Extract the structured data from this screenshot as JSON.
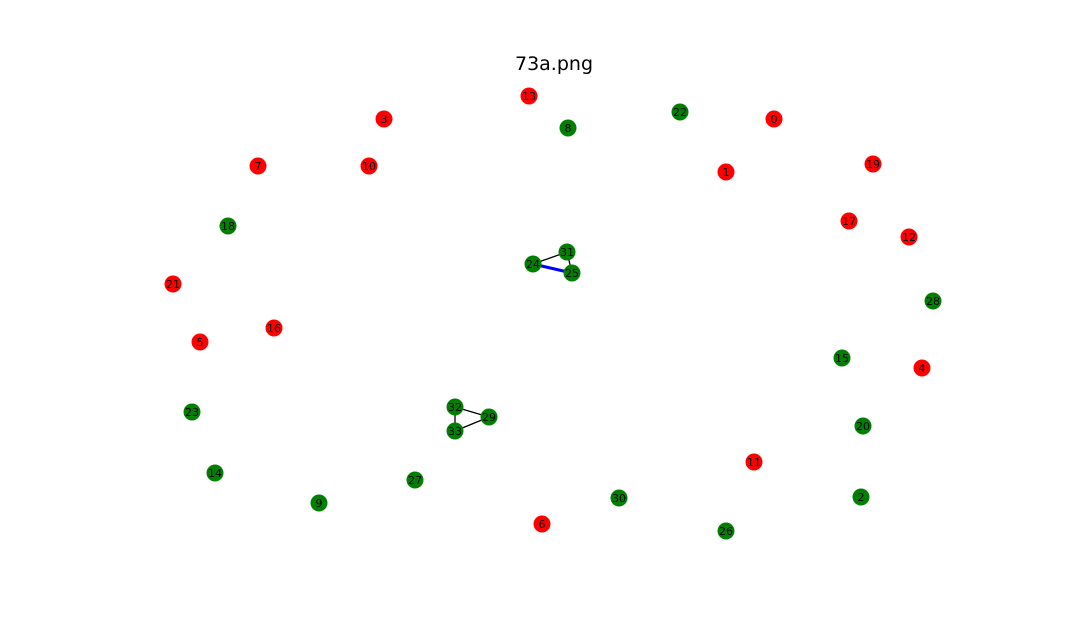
{
  "title": "73a.png",
  "colors": {
    "red": "#ff0000",
    "green": "#008000",
    "edge_default": "#000000",
    "edge_highlight": "#0000ff"
  },
  "nodes": [
    {
      "id": "0",
      "color": "red"
    },
    {
      "id": "1",
      "color": "red"
    },
    {
      "id": "2",
      "color": "green"
    },
    {
      "id": "3",
      "color": "red"
    },
    {
      "id": "4",
      "color": "red"
    },
    {
      "id": "5",
      "color": "red"
    },
    {
      "id": "6",
      "color": "red"
    },
    {
      "id": "7",
      "color": "red"
    },
    {
      "id": "8",
      "color": "green"
    },
    {
      "id": "9",
      "color": "green"
    },
    {
      "id": "10",
      "color": "red"
    },
    {
      "id": "11",
      "color": "red"
    },
    {
      "id": "12",
      "color": "red"
    },
    {
      "id": "13",
      "color": "red"
    },
    {
      "id": "14",
      "color": "green"
    },
    {
      "id": "15",
      "color": "green"
    },
    {
      "id": "16",
      "color": "red"
    },
    {
      "id": "17",
      "color": "red"
    },
    {
      "id": "18",
      "color": "green"
    },
    {
      "id": "19",
      "color": "red"
    },
    {
      "id": "20",
      "color": "green"
    },
    {
      "id": "21",
      "color": "red"
    },
    {
      "id": "22",
      "color": "green"
    },
    {
      "id": "23",
      "color": "green"
    },
    {
      "id": "24",
      "color": "green"
    },
    {
      "id": "25",
      "color": "green"
    },
    {
      "id": "26",
      "color": "green"
    },
    {
      "id": "27",
      "color": "green"
    },
    {
      "id": "28",
      "color": "green"
    },
    {
      "id": "29",
      "color": "green"
    },
    {
      "id": "30",
      "color": "green"
    },
    {
      "id": "31",
      "color": "green"
    },
    {
      "id": "32",
      "color": "green"
    },
    {
      "id": "33",
      "color": "green"
    }
  ],
  "edges": [
    {
      "source": "24",
      "target": "31",
      "highlight": false
    },
    {
      "source": "31",
      "target": "25",
      "highlight": false
    },
    {
      "source": "24",
      "target": "25",
      "highlight": true
    },
    {
      "source": "32",
      "target": "29",
      "highlight": false
    },
    {
      "source": "33",
      "target": "29",
      "highlight": false
    },
    {
      "source": "32",
      "target": "33",
      "highlight": false
    }
  ]
}
